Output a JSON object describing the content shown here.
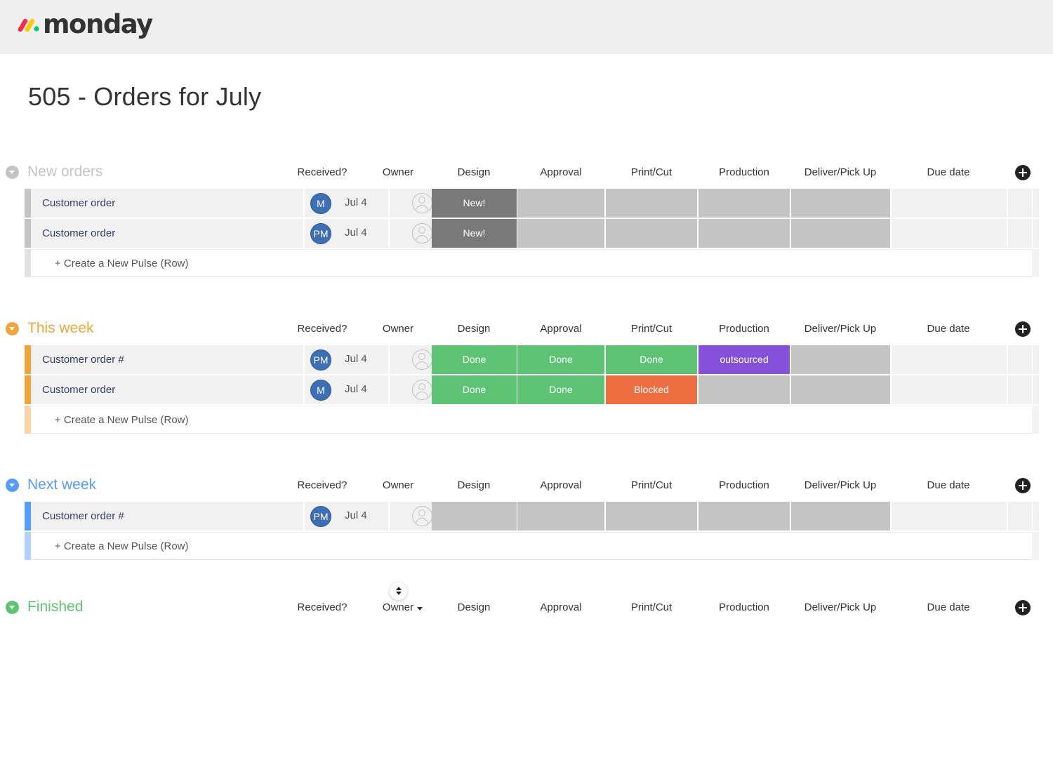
{
  "app": {
    "logo_text": "monday",
    "logo_icon": "monday-logo-icon"
  },
  "board": {
    "title": "505 - Orders for July"
  },
  "columns": [
    "Received?",
    "Owner",
    "Design",
    "Approval",
    "Print/Cut",
    "Production",
    "Deliver/Pick Up",
    "Due date"
  ],
  "create_label": "+ Create a New Pulse (Row)",
  "status_colors": {
    "empty": "#c4c4c4",
    "New!": "#797979",
    "Done": "#5ec374",
    "Blocked": "#ee6d42",
    "outsourced": "#8551d8"
  },
  "groups": [
    {
      "name": "New orders",
      "color": "#c4c4c4",
      "bar_color": "#c4c4c4",
      "create_bar_color": "#e2e2e2",
      "rows": [
        {
          "name": "Customer order",
          "avatar": "M",
          "received": "Jul 4",
          "status": [
            "New!",
            "",
            "",
            "",
            ""
          ]
        },
        {
          "name": "Customer order",
          "avatar": "PM",
          "received": "Jul 4",
          "status": [
            "New!",
            "",
            "",
            "",
            ""
          ]
        }
      ]
    },
    {
      "name": "This week",
      "color": "#f2a43c",
      "bar_color": "#f2a43c",
      "create_bar_color": "#f9d4a4",
      "rows": [
        {
          "name": "Customer order #",
          "avatar": "PM",
          "received": "Jul 4",
          "status": [
            "Done",
            "Done",
            "Done",
            "outsourced",
            ""
          ]
        },
        {
          "name": "Customer order",
          "avatar": "M",
          "received": "Jul 4",
          "status": [
            "Done",
            "Done",
            "Blocked",
            "",
            ""
          ]
        }
      ]
    },
    {
      "name": "Next week",
      "color": "#579bfc",
      "bar_color": "#579bfc",
      "create_bar_color": "#b3d1fd",
      "rows": [
        {
          "name": "Customer order #",
          "avatar": "PM",
          "received": "Jul 4",
          "status": [
            "",
            "",
            "",
            "",
            ""
          ]
        }
      ]
    },
    {
      "name": "Finished",
      "color": "#5ec374",
      "bar_color": "#5ec374",
      "create_bar_color": "#b7e6c1",
      "owner_sorted": true,
      "rows": []
    }
  ]
}
